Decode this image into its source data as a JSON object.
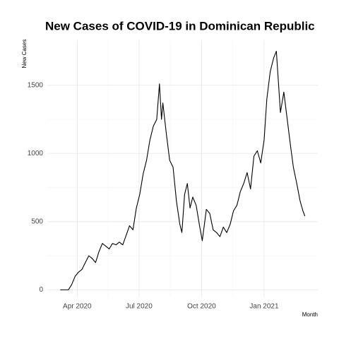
{
  "chart_data": {
    "type": "line",
    "title": "New Cases of COVID-19 in Dominican Republic",
    "y_label": "New Cases",
    "x_label": "Month",
    "xlim": [
      "2020-02-17",
      "2021-03-21"
    ],
    "xticks": [
      {
        "value": "2020-04-01",
        "label": "Apr 2020"
      },
      {
        "value": "2020-07-01",
        "label": "Jul 2020"
      },
      {
        "value": "2020-10-01",
        "label": "Oct 2020"
      },
      {
        "value": "2021-01-01",
        "label": "Jan 2021"
      }
    ],
    "ylim": [
      -55,
      1830
    ],
    "yticks": [
      0,
      500,
      1000,
      1500
    ],
    "grid": true,
    "x": [
      "2020-03-07",
      "2020-03-19",
      "2020-03-24",
      "2020-03-29",
      "2020-04-03",
      "2020-04-08",
      "2020-04-13",
      "2020-04-18",
      "2020-04-23",
      "2020-04-28",
      "2020-05-03",
      "2020-05-08",
      "2020-05-13",
      "2020-05-18",
      "2020-05-23",
      "2020-05-28",
      "2020-06-02",
      "2020-06-07",
      "2020-06-12",
      "2020-06-17",
      "2020-06-22",
      "2020-06-27",
      "2020-07-02",
      "2020-07-07",
      "2020-07-12",
      "2020-07-17",
      "2020-07-22",
      "2020-07-27",
      "2020-07-31",
      "2020-08-03",
      "2020-08-05",
      "2020-08-10",
      "2020-08-15",
      "2020-08-20",
      "2020-08-25",
      "2020-08-30",
      "2020-09-02",
      "2020-09-06",
      "2020-09-10",
      "2020-09-14",
      "2020-09-18",
      "2020-09-23",
      "2020-09-28",
      "2020-10-02",
      "2020-10-08",
      "2020-10-13",
      "2020-10-18",
      "2020-10-23",
      "2020-10-28",
      "2020-11-02",
      "2020-11-07",
      "2020-11-12",
      "2020-11-17",
      "2020-11-22",
      "2020-11-27",
      "2020-12-02",
      "2020-12-07",
      "2020-12-12",
      "2020-12-17",
      "2020-12-22",
      "2020-12-27",
      "2021-01-01",
      "2021-01-05",
      "2021-01-10",
      "2021-01-15",
      "2021-01-19",
      "2021-01-25",
      "2021-01-30",
      "2021-02-04",
      "2021-02-09",
      "2021-02-13",
      "2021-02-18",
      "2021-02-23",
      "2021-02-27",
      "2021-03-02"
    ],
    "series": [
      {
        "name": "New Cases",
        "color": "#000000",
        "values": [
          0,
          0,
          40,
          100,
          130,
          150,
          200,
          250,
          230,
          200,
          280,
          340,
          320,
          300,
          340,
          330,
          350,
          330,
          400,
          470,
          440,
          600,
          700,
          850,
          950,
          1100,
          1200,
          1250,
          1510,
          1250,
          1370,
          1150,
          950,
          900,
          650,
          480,
          420,
          700,
          780,
          600,
          680,
          620,
          470,
          360,
          590,
          560,
          440,
          420,
          390,
          460,
          420,
          480,
          580,
          620,
          720,
          780,
          860,
          740,
          980,
          1020,
          930,
          1100,
          1400,
          1600,
          1700,
          1750,
          1300,
          1450,
          1250,
          1050,
          900,
          780,
          650,
          580,
          540
        ]
      }
    ]
  }
}
